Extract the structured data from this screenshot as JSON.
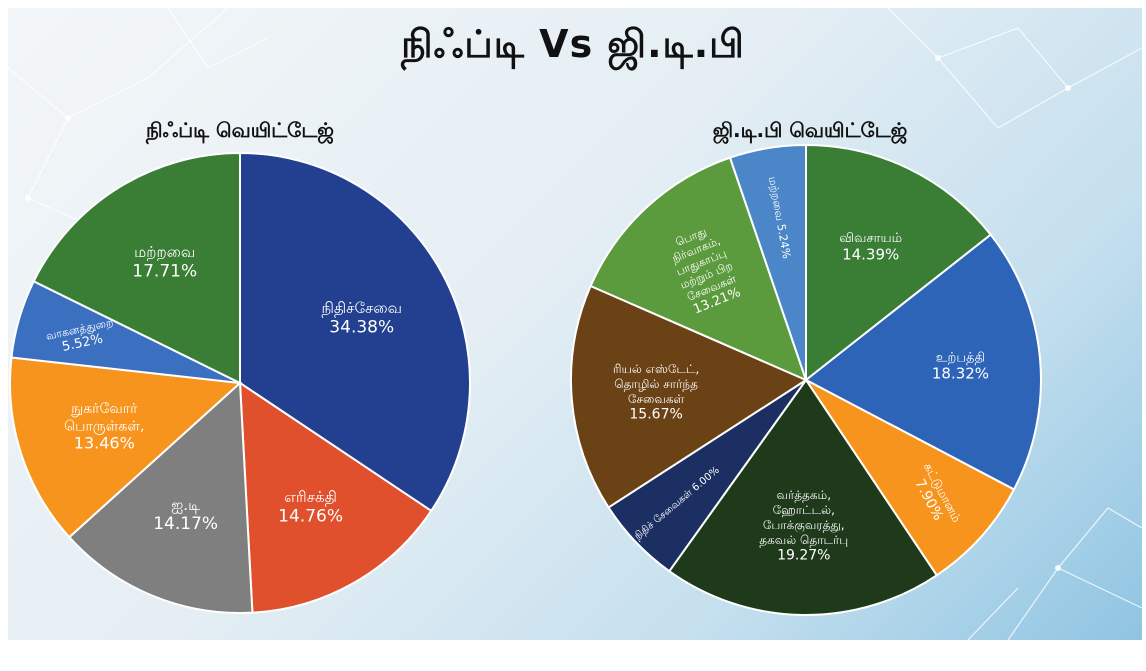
{
  "title": "நிஃப்டி Vs ஜி.டி.பி",
  "chart_data": [
    {
      "type": "pie",
      "title": "நிஃப்டி வெயிட்டேஜ்",
      "slices": [
        {
          "label": "நிதிச்சேவை",
          "value": 34.38,
          "value_label": "34.38%",
          "color": "#22408f"
        },
        {
          "label": "எரிசக்தி",
          "value": 14.76,
          "value_label": "14.76%",
          "color": "#e0502c"
        },
        {
          "label": "ஐ.டி",
          "value": 14.17,
          "value_label": "14.17%",
          "color": "#7f7f7f"
        },
        {
          "label": "நுகர்வோர் பொருள்கள்,",
          "value": 13.46,
          "value_label": "13.46%",
          "color": "#f7941d"
        },
        {
          "label": "வாகனத்துறை",
          "value": 5.52,
          "value_label": "5.52%",
          "color": "#3b6fc0"
        },
        {
          "label": "மற்றவை",
          "value": 17.71,
          "value_label": "17.71%",
          "color": "#3a7d35"
        }
      ]
    },
    {
      "type": "pie",
      "title": "ஜி.டி.பி வெயிட்டேஜ்",
      "slices": [
        {
          "label": "விவசாயம்",
          "value": 14.39,
          "value_label": "14.39%",
          "color": "#3a7d35"
        },
        {
          "label": "உற்பத்தி",
          "value": 18.32,
          "value_label": "18.32%",
          "color": "#2e64b8"
        },
        {
          "label": "கட்டுமானம்",
          "value": 7.9,
          "value_label": "7.90%",
          "color": "#f7941d"
        },
        {
          "label": "வர்த்தகம், ஹோட்டல், போக்குவரத்து, தகவல் தொடர்பு",
          "value": 19.27,
          "value_label": "19.27%",
          "color": "#1e3a1a"
        },
        {
          "label": "நிதிச் சேவைகள்",
          "value": 6.0,
          "value_label": "6.00%",
          "color": "#1b2f63"
        },
        {
          "label": "ரியல் எஸ்டேட், தொழில் சார்ந்த சேவைகள்",
          "value": 15.67,
          "value_label": "15.67%",
          "color": "#6a4216"
        },
        {
          "label": "பொது நிர்வாகம், பாதுகாப்பு மற்றும் பிற சேவைகள்",
          "value": 13.21,
          "value_label": "13.21%",
          "color": "#5b9a3d"
        },
        {
          "label": "மற்றவை",
          "value": 5.24,
          "value_label": "5.24%",
          "color": "#4a86c8"
        }
      ]
    }
  ]
}
